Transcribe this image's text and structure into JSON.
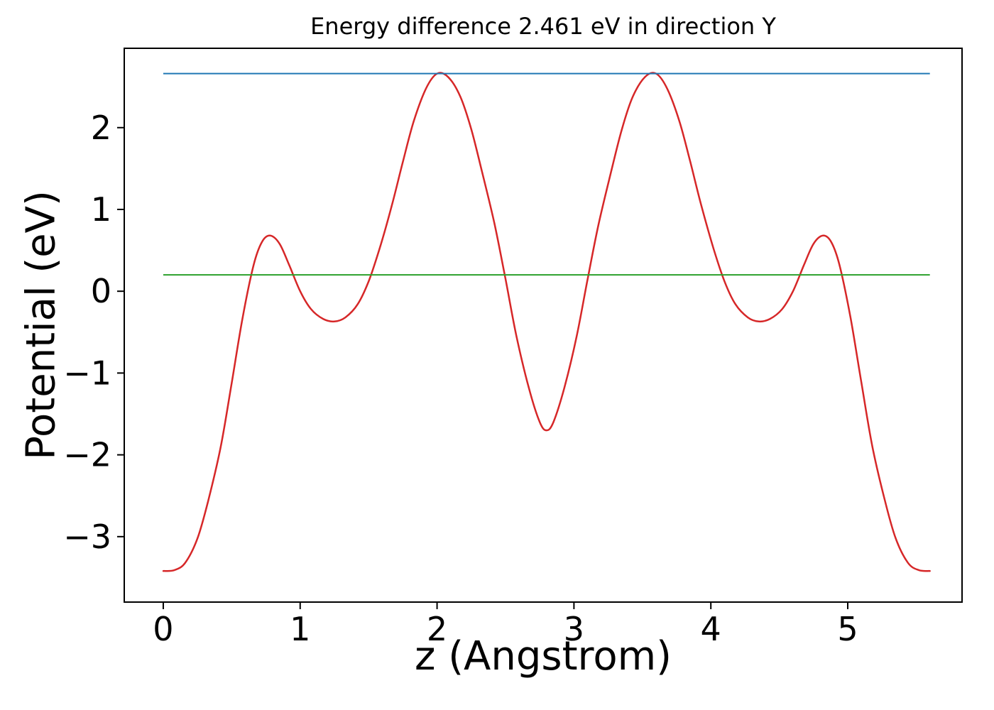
{
  "chart_data": {
    "type": "line",
    "title": "Energy difference 2.461 eV in direction Y",
    "xlabel": "z (Angstrom)",
    "ylabel": "Potential (eV)",
    "xlim": [
      -0.285,
      5.835
    ],
    "ylim": [
      -3.8,
      2.97
    ],
    "xticks": [
      0,
      1,
      2,
      3,
      4,
      5
    ],
    "yticks": [
      -3,
      -2,
      -1,
      0,
      1,
      2
    ],
    "grid": false,
    "legend": null,
    "energy_difference_eV": 2.461,
    "direction": "Y",
    "series": [
      {
        "name": "potential-profile",
        "type": "line",
        "color": "#d62728",
        "line_width": 2.5,
        "x": [
          0,
          0.08,
          0.16,
          0.25,
          0.33,
          0.42,
          0.5,
          0.58,
          0.66,
          0.72,
          0.78,
          0.85,
          0.92,
          1,
          1.08,
          1.17,
          1.25,
          1.33,
          1.42,
          1.5,
          1.58,
          1.67,
          1.75,
          1.83,
          1.92,
          2,
          2.08,
          2.17,
          2.25,
          2.33,
          2.42,
          2.5,
          2.58,
          2.67,
          2.75,
          2.8,
          2.85,
          2.93,
          3.02,
          3.1,
          3.18,
          3.27,
          3.35,
          3.43,
          3.52,
          3.6,
          3.68,
          3.77,
          3.85,
          3.93,
          4.02,
          4.1,
          4.18,
          4.27,
          4.35,
          4.43,
          4.52,
          4.6,
          4.68,
          4.75,
          4.82,
          4.88,
          4.94,
          5.02,
          5.1,
          5.18,
          5.27,
          5.35,
          5.44,
          5.52,
          5.6
        ],
        "y": [
          -3.42,
          -3.41,
          -3.32,
          -3.02,
          -2.55,
          -1.9,
          -1.12,
          -0.32,
          0.32,
          0.6,
          0.68,
          0.58,
          0.32,
          0,
          -0.22,
          -0.34,
          -0.37,
          -0.32,
          -0.16,
          0.12,
          0.52,
          1.05,
          1.58,
          2.08,
          2.48,
          2.66,
          2.62,
          2.38,
          1.98,
          1.45,
          0.82,
          0.15,
          -0.55,
          -1.18,
          -1.6,
          -1.7,
          -1.6,
          -1.18,
          -0.55,
          0.15,
          0.82,
          1.45,
          1.98,
          2.38,
          2.62,
          2.66,
          2.48,
          2.08,
          1.58,
          1.05,
          0.52,
          0.12,
          -0.16,
          -0.32,
          -0.37,
          -0.34,
          -0.22,
          0,
          0.32,
          0.58,
          0.68,
          0.6,
          0.32,
          -0.32,
          -1.12,
          -1.9,
          -2.55,
          -3.02,
          -3.32,
          -3.41,
          -3.42
        ]
      },
      {
        "name": "max-potential-line",
        "type": "hline",
        "color": "#1f77b4",
        "line_width": 2,
        "y": 2.661,
        "x_range": [
          0,
          5.6
        ]
      },
      {
        "name": "min-potential-line",
        "type": "hline",
        "color": "#2ca02c",
        "line_width": 2,
        "y": 0.2,
        "x_range": [
          0,
          5.6
        ]
      }
    ]
  }
}
